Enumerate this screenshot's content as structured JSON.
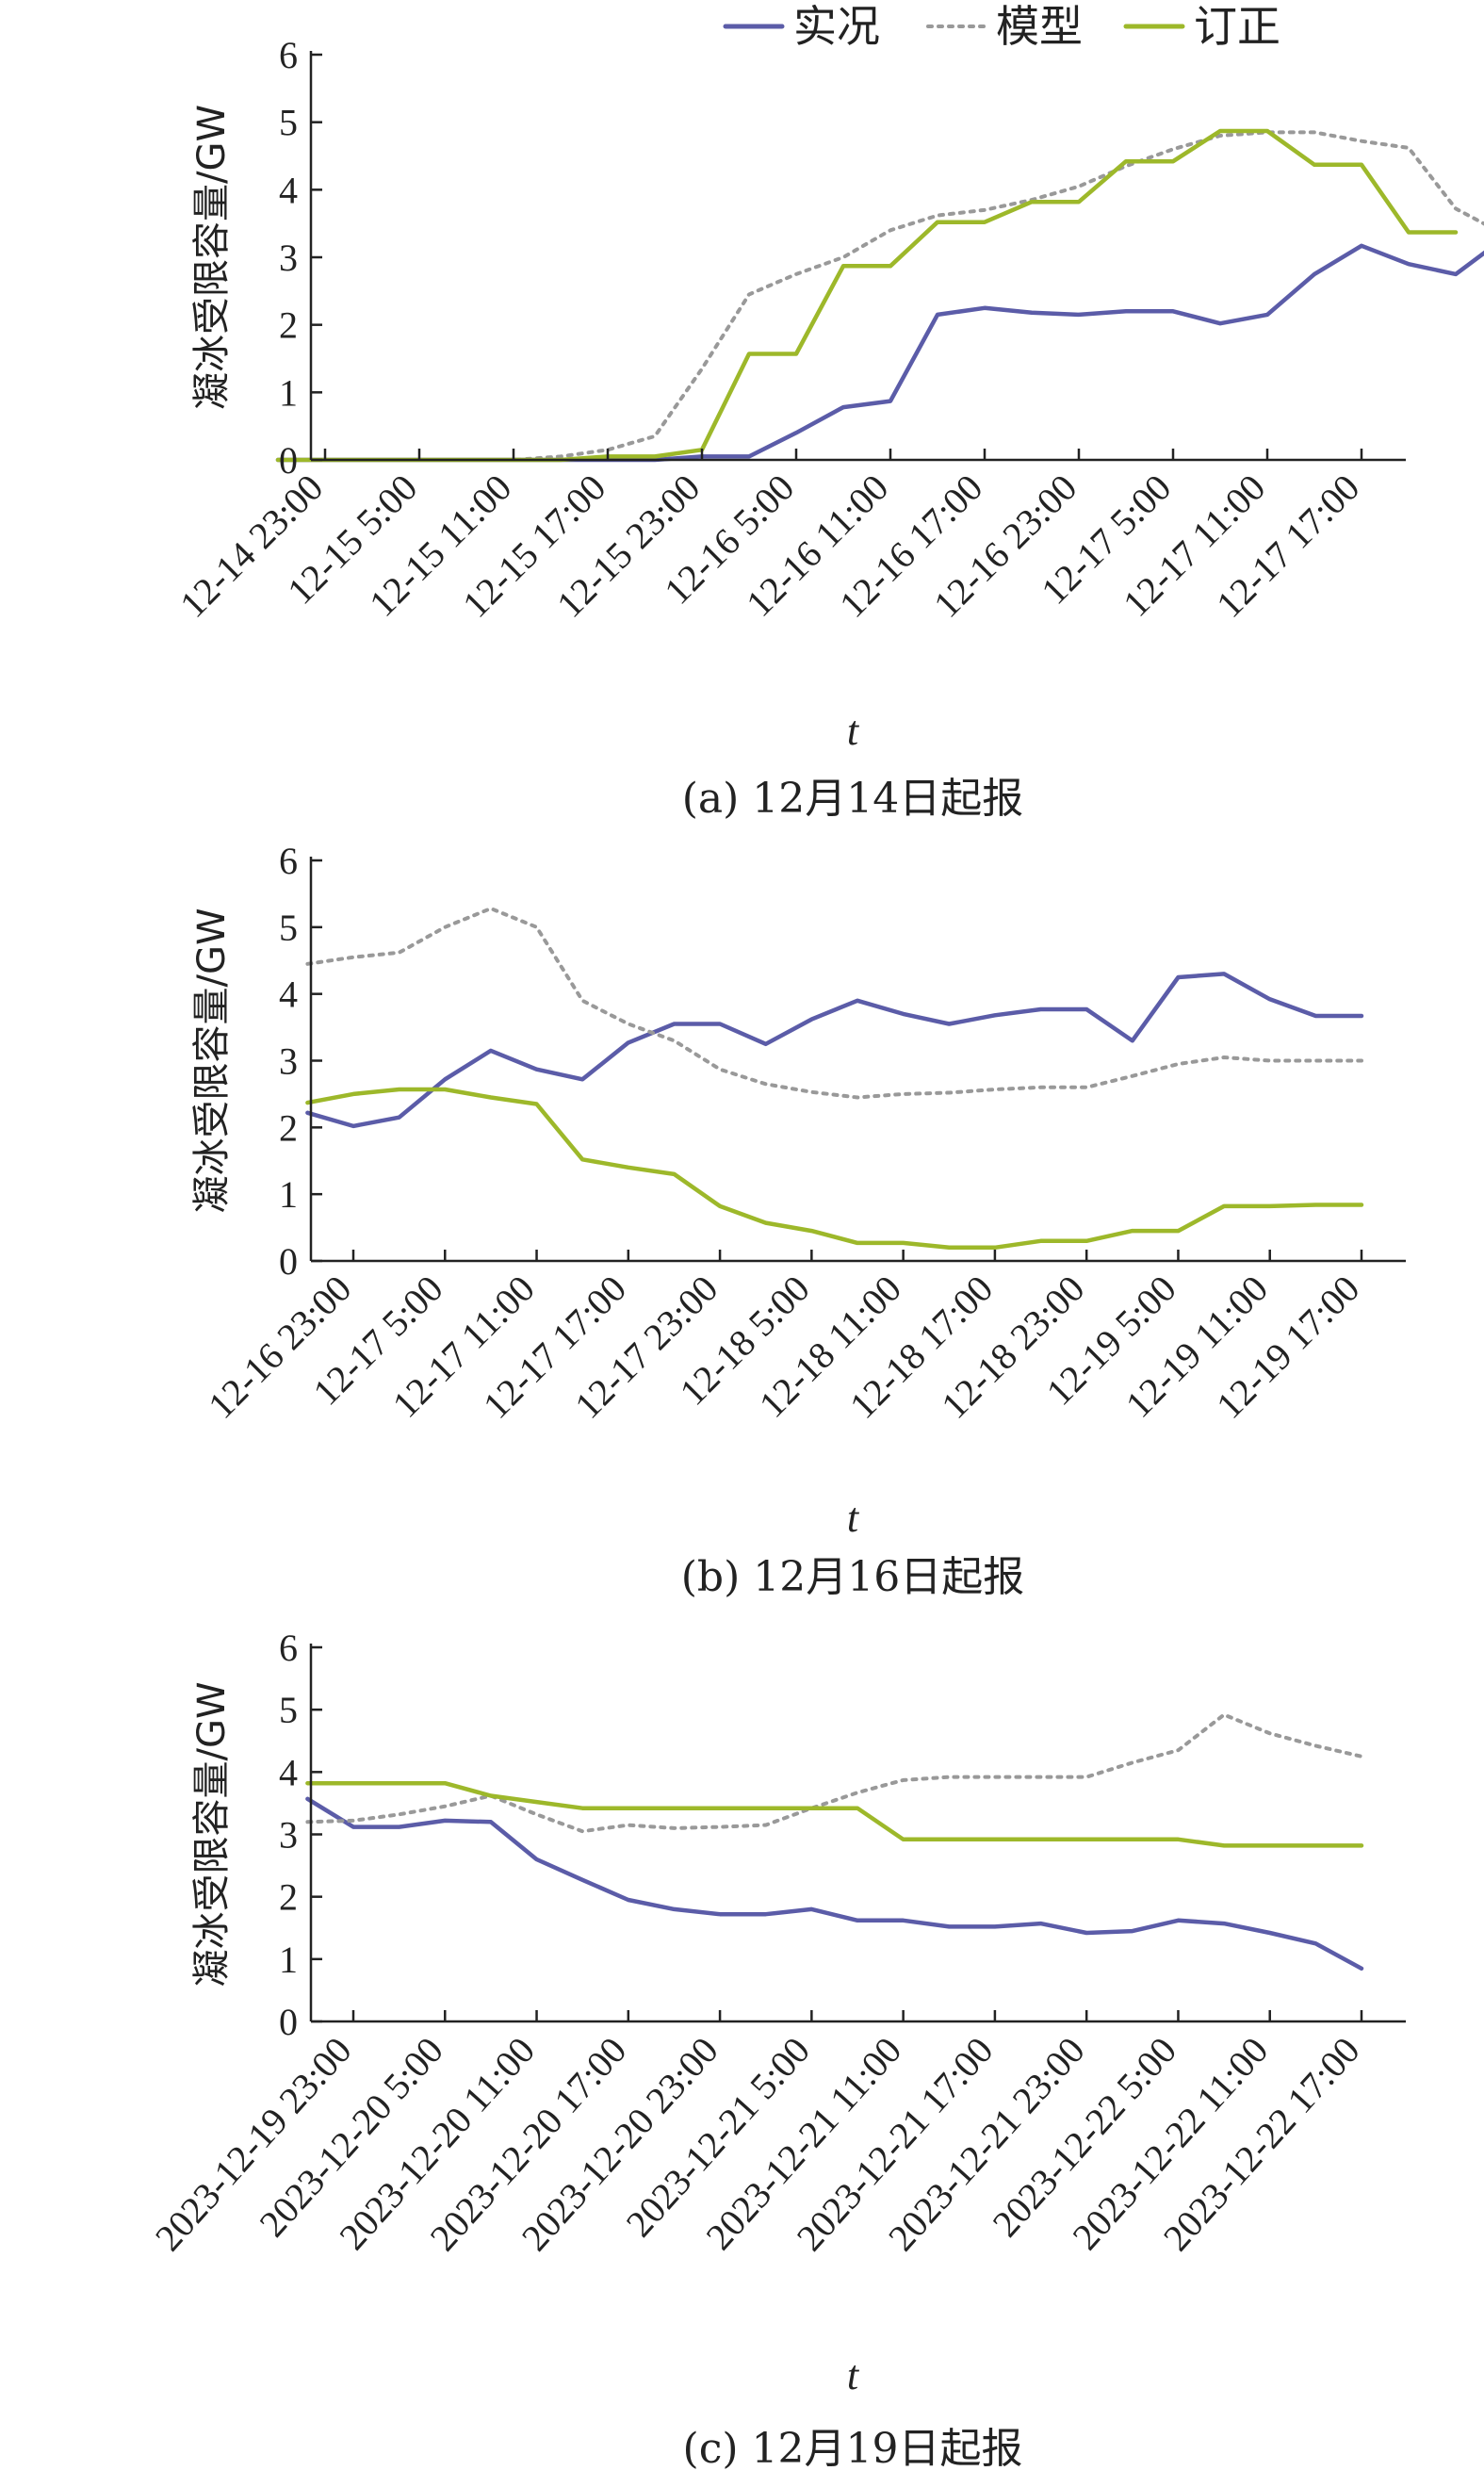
{
  "legend": {
    "items": [
      {
        "label": "实况",
        "color": "#5b5ca8",
        "dash": "solid"
      },
      {
        "label": "模型",
        "color": "#999999",
        "dash": "dotted"
      },
      {
        "label": "订正",
        "color": "#9db82a",
        "dash": "solid"
      }
    ]
  },
  "chart_data": [
    {
      "type": "line",
      "caption": "(a) 12月14日起报",
      "xlabel": "t",
      "ylabel": "凝冰受限容量/GW",
      "ylim": [
        0,
        6
      ],
      "yticks": [
        0,
        1,
        2,
        3,
        4,
        5,
        6
      ],
      "x_tick_labels": [
        "12-14 23:00",
        "12-15 5:00",
        "12-15 11:00",
        "12-15 17:00",
        "12-15 23:00",
        "12-16 5:00",
        "12-16 11:00",
        "12-16 17:00",
        "12-16 23:00",
        "12-17 5:00",
        "12-17 11:00",
        "12-17 17:00"
      ],
      "points_per_tick": 2,
      "series": [
        {
          "name": "实况",
          "values": [
            0,
            0,
            0,
            0,
            0,
            0,
            0,
            0,
            0,
            0.05,
            0.05,
            0.4,
            0.78,
            0.87,
            2.15,
            2.25,
            2.18,
            2.15,
            2.2,
            2.2,
            2.02,
            2.15,
            2.75,
            3.17,
            2.9,
            2.75,
            3.27
          ]
        },
        {
          "name": "模型",
          "values": [
            0,
            0,
            0,
            0,
            0,
            0,
            0.05,
            0.15,
            0.35,
            1.35,
            2.45,
            2.75,
            3.0,
            3.4,
            3.62,
            3.7,
            3.85,
            4.05,
            4.35,
            4.6,
            4.8,
            4.85,
            4.85,
            4.72,
            4.62,
            3.72,
            3.35
          ]
        },
        {
          "name": "订正",
          "values": [
            0,
            0,
            0,
            0,
            0,
            0,
            0,
            0.05,
            0.05,
            0.15,
            1.57,
            1.57,
            2.87,
            2.87,
            3.52,
            3.52,
            3.82,
            3.82,
            4.42,
            4.42,
            4.87,
            4.87,
            4.37,
            4.37,
            3.37,
            3.37
          ]
        }
      ]
    },
    {
      "type": "line",
      "caption": "(b) 12月16日起报",
      "xlabel": "t",
      "ylabel": "凝冰受限容量/GW",
      "ylim": [
        0,
        6
      ],
      "yticks": [
        0,
        1,
        2,
        3,
        4,
        5,
        6
      ],
      "x_tick_labels": [
        "12-16 23:00",
        "12-17 5:00",
        "12-17 11:00",
        "12-17 17:00",
        "12-17 23:00",
        "12-18 5:00",
        "12-18 11:00",
        "12-18 17:00",
        "12-18 23:00",
        "12-19 5:00",
        "12-19 11:00",
        "12-19 17:00"
      ],
      "points_per_tick": 2,
      "series": [
        {
          "name": "实况",
          "values": [
            2.22,
            2.02,
            2.15,
            2.72,
            3.15,
            2.87,
            2.72,
            3.27,
            3.55,
            3.55,
            3.25,
            3.62,
            3.9,
            3.7,
            3.55,
            3.68,
            3.77,
            3.77,
            3.3,
            4.25,
            4.3,
            3.92,
            3.67,
            3.67
          ]
        },
        {
          "name": "模型",
          "values": [
            4.45,
            4.55,
            4.62,
            5.0,
            5.28,
            5.0,
            3.9,
            3.55,
            3.3,
            2.87,
            2.65,
            2.53,
            2.45,
            2.5,
            2.52,
            2.57,
            2.6,
            2.6,
            2.77,
            2.95,
            3.05,
            3.0,
            3.0,
            3.0
          ]
        },
        {
          "name": "订正",
          "values": [
            2.37,
            2.5,
            2.57,
            2.57,
            2.45,
            2.35,
            1.52,
            1.4,
            1.3,
            0.82,
            0.57,
            0.45,
            0.27,
            0.27,
            0.2,
            0.2,
            0.3,
            0.3,
            0.45,
            0.45,
            0.82,
            0.82,
            0.84,
            0.84
          ]
        }
      ]
    },
    {
      "type": "line",
      "caption": "(c) 12月19日起报",
      "xlabel": "t",
      "ylabel": "凝冰受限容量/GW",
      "ylim": [
        0,
        6
      ],
      "yticks": [
        0,
        1,
        2,
        3,
        4,
        5,
        6
      ],
      "x_tick_labels": [
        "2023-12-19 23:00",
        "2023-12-20 5:00",
        "2023-12-20 11:00",
        "2023-12-20 17:00",
        "2023-12-20 23:00",
        "2023-12-21 5:00",
        "2023-12-21 11:00",
        "2023-12-21 17:00",
        "2023-12-21 23:00",
        "2023-12-22 5:00",
        "2023-12-22 11:00",
        "2023-12-22 17:00"
      ],
      "points_per_tick": 2,
      "series": [
        {
          "name": "实况",
          "values": [
            3.57,
            3.12,
            3.12,
            3.22,
            3.2,
            2.6,
            2.27,
            1.95,
            1.8,
            1.72,
            1.72,
            1.8,
            1.62,
            1.62,
            1.52,
            1.52,
            1.57,
            1.42,
            1.45,
            1.62,
            1.57,
            1.42,
            1.25,
            0.85
          ]
        },
        {
          "name": "模型",
          "values": [
            3.2,
            3.22,
            3.32,
            3.45,
            3.62,
            3.32,
            3.05,
            3.15,
            3.1,
            3.12,
            3.15,
            3.42,
            3.67,
            3.87,
            3.92,
            3.92,
            3.92,
            3.92,
            4.15,
            4.35,
            4.92,
            4.62,
            4.42,
            4.25
          ]
        },
        {
          "name": "订正",
          "values": [
            3.82,
            3.82,
            3.82,
            3.82,
            3.62,
            3.52,
            3.42,
            3.42,
            3.42,
            3.42,
            3.42,
            3.42,
            3.42,
            2.92,
            2.92,
            2.92,
            2.92,
            2.92,
            2.92,
            2.92,
            2.82,
            2.82,
            2.82,
            2.82
          ]
        }
      ]
    }
  ]
}
